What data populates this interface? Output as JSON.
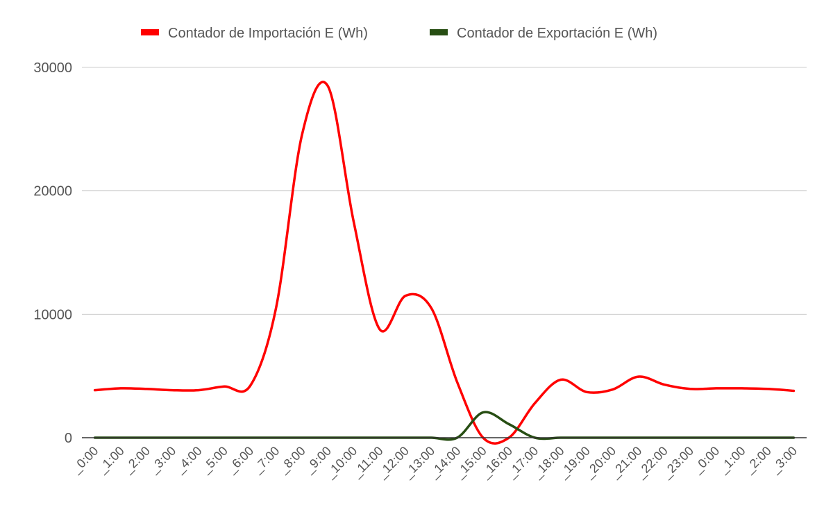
{
  "chart_data": {
    "type": "line",
    "title": "",
    "xlabel": "",
    "ylabel": "",
    "ylim": [
      0,
      30000
    ],
    "yticks": [
      0,
      10000,
      20000,
      30000
    ],
    "grid": true,
    "legend_position": "top",
    "categories": [
      "_0:00",
      "_1:00",
      "_2:00",
      "_3:00",
      "_4:00",
      "_5:00",
      "_6:00",
      "_7:00",
      "_8:00",
      "_9:00",
      "_10:00",
      "_11:00",
      "_12:00",
      "_13:00",
      "_14:00",
      "_15:00",
      "_16:00",
      "_17:00",
      "_18:00",
      "_19:00",
      "_20:00",
      "_21:00",
      "_22:00",
      "_23:00",
      "_0:00",
      "_1:00",
      "_2:00",
      "_3:00"
    ],
    "series": [
      {
        "name": "Contador de Importación E (Wh)",
        "color": "#ff0000",
        "values": [
          3850,
          4000,
          3950,
          3850,
          3850,
          4150,
          4200,
          10500,
          24500,
          28500,
          17500,
          8800,
          11500,
          10500,
          4500,
          0,
          0,
          2800,
          4700,
          3700,
          3900,
          4950,
          4300,
          3950,
          4000,
          4000,
          3950,
          3800
        ]
      },
      {
        "name": "Contador de Exportación E (Wh)",
        "color": "#274e13",
        "values": [
          0,
          0,
          0,
          0,
          0,
          0,
          0,
          0,
          0,
          0,
          0,
          0,
          0,
          0,
          0,
          2050,
          1100,
          0,
          0,
          0,
          0,
          0,
          0,
          0,
          0,
          0,
          0,
          0
        ]
      }
    ]
  }
}
